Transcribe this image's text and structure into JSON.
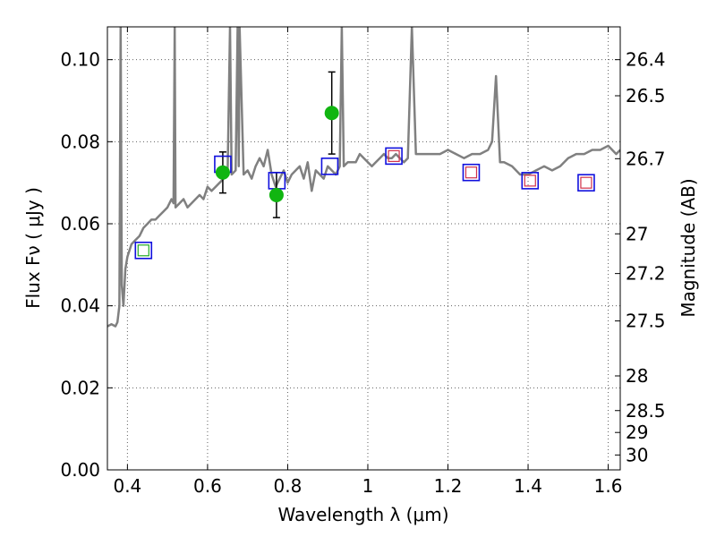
{
  "chart_data": {
    "type": "scatter",
    "xlabel": "Wavelength  λ (μm)",
    "ylabel": "Flux  Fν  ( μJy )",
    "ylabel_right": "Magnitude (AB)",
    "xlim": [
      0.35,
      1.63
    ],
    "ylim": [
      0.0,
      0.108
    ],
    "grid": true,
    "x_ticks": [
      0.4,
      0.6,
      0.8,
      1.0,
      1.2,
      1.4,
      1.6
    ],
    "x_tick_labels": [
      "0.4",
      "0.6",
      "0.8",
      "1",
      "1.2",
      "1.4",
      "1.6"
    ],
    "y_ticks": [
      0.0,
      0.02,
      0.04,
      0.06,
      0.08,
      0.1
    ],
    "y_tick_labels": [
      "0.00",
      "0.02",
      "0.04",
      "0.06",
      "0.08",
      "0.10"
    ],
    "right_ticks_mag": [
      26.4,
      26.5,
      26.7,
      27,
      27.2,
      27.5,
      28,
      28.5,
      29,
      30
    ],
    "right_tick_labels": [
      "26.4",
      "26.5",
      "26.7",
      "27",
      "27.2",
      "27.5",
      "28",
      "28.5",
      "29",
      "30"
    ],
    "colors": {
      "spectrum": "#808080",
      "observed": "#11b511",
      "model_box": "#1010dd",
      "inner_box_red": "#d0304a",
      "inner_box_green": "#22aa22",
      "errorbar": "#000000",
      "grid": "#606060"
    },
    "spectrum": {
      "name": "",
      "x": [
        0.35,
        0.36,
        0.37,
        0.375,
        0.38,
        0.383,
        0.386,
        0.39,
        0.395,
        0.4,
        0.41,
        0.42,
        0.43,
        0.44,
        0.45,
        0.46,
        0.47,
        0.48,
        0.49,
        0.5,
        0.51,
        0.515,
        0.518,
        0.52,
        0.53,
        0.54,
        0.55,
        0.56,
        0.57,
        0.58,
        0.59,
        0.6,
        0.61,
        0.62,
        0.63,
        0.64,
        0.65,
        0.656,
        0.66,
        0.67,
        0.675,
        0.678,
        0.68,
        0.69,
        0.7,
        0.71,
        0.72,
        0.73,
        0.74,
        0.75,
        0.76,
        0.77,
        0.78,
        0.79,
        0.8,
        0.81,
        0.82,
        0.83,
        0.84,
        0.85,
        0.86,
        0.87,
        0.88,
        0.89,
        0.9,
        0.91,
        0.92,
        0.93,
        0.935,
        0.94,
        0.95,
        0.96,
        0.97,
        0.98,
        0.99,
        1.0,
        1.01,
        1.02,
        1.03,
        1.04,
        1.05,
        1.06,
        1.07,
        1.08,
        1.09,
        1.1,
        1.11,
        1.12,
        1.13,
        1.14,
        1.16,
        1.18,
        1.2,
        1.22,
        1.24,
        1.26,
        1.28,
        1.3,
        1.31,
        1.32,
        1.33,
        1.34,
        1.36,
        1.38,
        1.4,
        1.42,
        1.44,
        1.46,
        1.48,
        1.5,
        1.52,
        1.54,
        1.56,
        1.58,
        1.6,
        1.62,
        1.63
      ],
      "y": [
        0.035,
        0.0355,
        0.035,
        0.036,
        0.04,
        0.108,
        0.045,
        0.04,
        0.049,
        0.052,
        0.055,
        0.056,
        0.057,
        0.059,
        0.06,
        0.061,
        0.061,
        0.062,
        0.063,
        0.064,
        0.066,
        0.065,
        0.108,
        0.064,
        0.065,
        0.066,
        0.064,
        0.065,
        0.066,
        0.067,
        0.066,
        0.069,
        0.068,
        0.069,
        0.07,
        0.071,
        0.072,
        0.108,
        0.072,
        0.073,
        0.108,
        0.074,
        0.108,
        0.072,
        0.073,
        0.071,
        0.074,
        0.076,
        0.074,
        0.078,
        0.072,
        0.069,
        0.071,
        0.073,
        0.07,
        0.072,
        0.073,
        0.074,
        0.071,
        0.075,
        0.068,
        0.073,
        0.072,
        0.071,
        0.074,
        0.073,
        0.072,
        0.074,
        0.108,
        0.074,
        0.075,
        0.075,
        0.075,
        0.077,
        0.076,
        0.075,
        0.074,
        0.075,
        0.076,
        0.077,
        0.076,
        0.076,
        0.077,
        0.076,
        0.075,
        0.076,
        0.108,
        0.077,
        0.077,
        0.077,
        0.077,
        0.077,
        0.078,
        0.077,
        0.076,
        0.077,
        0.077,
        0.078,
        0.08,
        0.096,
        0.075,
        0.075,
        0.074,
        0.072,
        0.072,
        0.073,
        0.074,
        0.073,
        0.074,
        0.076,
        0.077,
        0.077,
        0.078,
        0.078,
        0.079,
        0.077,
        0.078
      ]
    },
    "observed_points": [
      {
        "x": 0.638,
        "y": 0.0725,
        "yerr": 0.005
      },
      {
        "x": 0.772,
        "y": 0.067,
        "yerr": 0.0055
      },
      {
        "x": 0.91,
        "y": 0.087,
        "yerr": 0.01
      }
    ],
    "model_boxes": [
      {
        "x": 0.44,
        "y": 0.0535,
        "inner": "green"
      },
      {
        "x": 0.638,
        "y": 0.0745,
        "inner": "none"
      },
      {
        "x": 0.773,
        "y": 0.0705,
        "inner": "none"
      },
      {
        "x": 0.905,
        "y": 0.074,
        "inner": "none"
      },
      {
        "x": 1.065,
        "y": 0.0765,
        "inner": "red"
      },
      {
        "x": 1.258,
        "y": 0.0725,
        "inner": "red"
      },
      {
        "x": 1.405,
        "y": 0.0705,
        "inner": "red"
      },
      {
        "x": 1.545,
        "y": 0.07,
        "inner": "red"
      }
    ]
  }
}
